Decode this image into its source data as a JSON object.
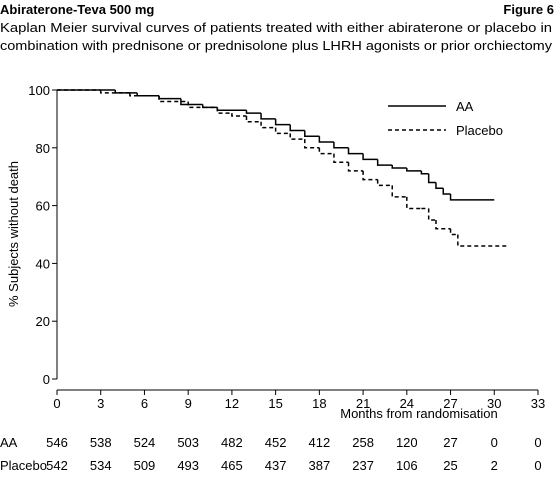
{
  "header": {
    "title": "Abiraterone-Teva 500 mg",
    "figure": "Figure 6",
    "subtitle_lines": [
      "Kaplan Meier survival curves of patients treated with either abiraterone or placebo in",
      "combination with prednisone or prednisolone plus LHRH agonists or prior orchiectomy"
    ]
  },
  "chart_data": {
    "type": "step",
    "xlabel": "Months from randomisation",
    "ylabel": "% Subjects without death",
    "xlim": [
      0,
      33
    ],
    "ylim": [
      0,
      100
    ],
    "xticks": [
      0,
      3,
      6,
      9,
      12,
      15,
      18,
      21,
      24,
      27,
      30,
      33
    ],
    "yticks": [
      0,
      20,
      40,
      60,
      80,
      100
    ],
    "grid": false,
    "legend": "upper right",
    "series": [
      {
        "name": "AA",
        "color": "#000000",
        "line_style": "solid",
        "x": [
          0,
          3,
          4,
          5.5,
          7,
          8.5,
          10,
          11,
          13,
          14,
          15,
          16,
          17,
          18,
          19,
          20,
          21,
          22,
          23,
          24,
          25,
          25.5,
          26,
          26.5,
          27,
          30
        ],
        "values": [
          100,
          100,
          99,
          98,
          97,
          95,
          94,
          93,
          92,
          90,
          88,
          86,
          84,
          82,
          80,
          78,
          76,
          74,
          73,
          72,
          71,
          68,
          66,
          64,
          62,
          62
        ],
        "at_risk": [
          546,
          538,
          524,
          503,
          482,
          452,
          412,
          258,
          120,
          27,
          0,
          0
        ]
      },
      {
        "name": "Placebo",
        "color": "#000000",
        "line_style": "dashed",
        "x": [
          0,
          3,
          5,
          7,
          9,
          11,
          12,
          13,
          14,
          15,
          16,
          17,
          18,
          19,
          20,
          21,
          22,
          23,
          24,
          25,
          25.5,
          26,
          27,
          27.5,
          31
        ],
        "values": [
          100,
          99,
          98,
          96,
          94,
          92,
          91,
          89,
          87,
          85,
          83,
          80,
          78,
          75,
          72,
          69,
          67,
          63,
          59,
          59,
          55,
          52,
          50,
          46,
          46
        ],
        "at_risk": [
          542,
          534,
          509,
          493,
          465,
          437,
          387,
          237,
          106,
          25,
          2,
          0
        ]
      }
    ]
  }
}
